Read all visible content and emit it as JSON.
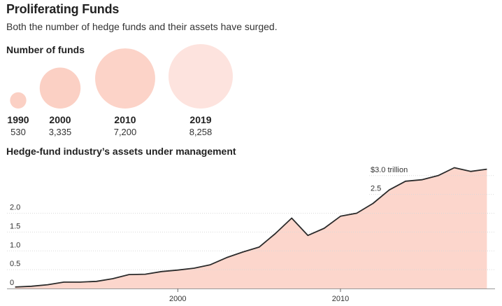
{
  "title": "Proliferating Funds",
  "subtitle": "Both the number of hedge funds and their assets have surged.",
  "colors": {
    "area_fill": "#fcd6cc",
    "line": "#2b2b2b",
    "grid": "#d9d9d9",
    "bubble_fills": [
      "#fbd0c4",
      "#fbd0c4",
      "#fcd3c8",
      "#fde3de"
    ]
  },
  "chart_data": [
    {
      "type": "bubble",
      "title": "Number of funds",
      "categories": [
        "1990",
        "2000",
        "2010",
        "2019"
      ],
      "values": [
        530,
        3335,
        7200,
        8258
      ],
      "value_labels": [
        "530",
        "3,335",
        "7,200",
        "8,258"
      ]
    },
    {
      "type": "area",
      "title": "Hedge-fund industry’s assets under management",
      "x": [
        1990,
        1991,
        1992,
        1993,
        1994,
        1995,
        1996,
        1997,
        1998,
        1999,
        2000,
        2001,
        2002,
        2003,
        2004,
        2005,
        2006,
        2007,
        2008,
        2009,
        2010,
        2011,
        2012,
        2013,
        2014,
        2015,
        2016,
        2017,
        2018,
        2019
      ],
      "values": [
        0.04,
        0.06,
        0.1,
        0.17,
        0.17,
        0.19,
        0.26,
        0.37,
        0.38,
        0.45,
        0.49,
        0.54,
        0.63,
        0.82,
        0.97,
        1.1,
        1.46,
        1.87,
        1.41,
        1.6,
        1.92,
        2.0,
        2.26,
        2.62,
        2.85,
        2.89,
        3.0,
        3.21,
        3.11,
        3.17
      ],
      "ylim": [
        0,
        3.2
      ],
      "xlim": [
        1989.5,
        2019.5
      ],
      "yticks": [
        0,
        0.5,
        1.0,
        1.5,
        2.0,
        2.5,
        3.0
      ],
      "ytick_labels": [
        "0",
        "0.5",
        "1.0",
        "1.5",
        "2.0",
        "2.5",
        "$3.0 trillion"
      ],
      "xticks": [
        2000,
        2010
      ],
      "xtick_labels": [
        "2000",
        "2010"
      ],
      "grid": true
    }
  ]
}
